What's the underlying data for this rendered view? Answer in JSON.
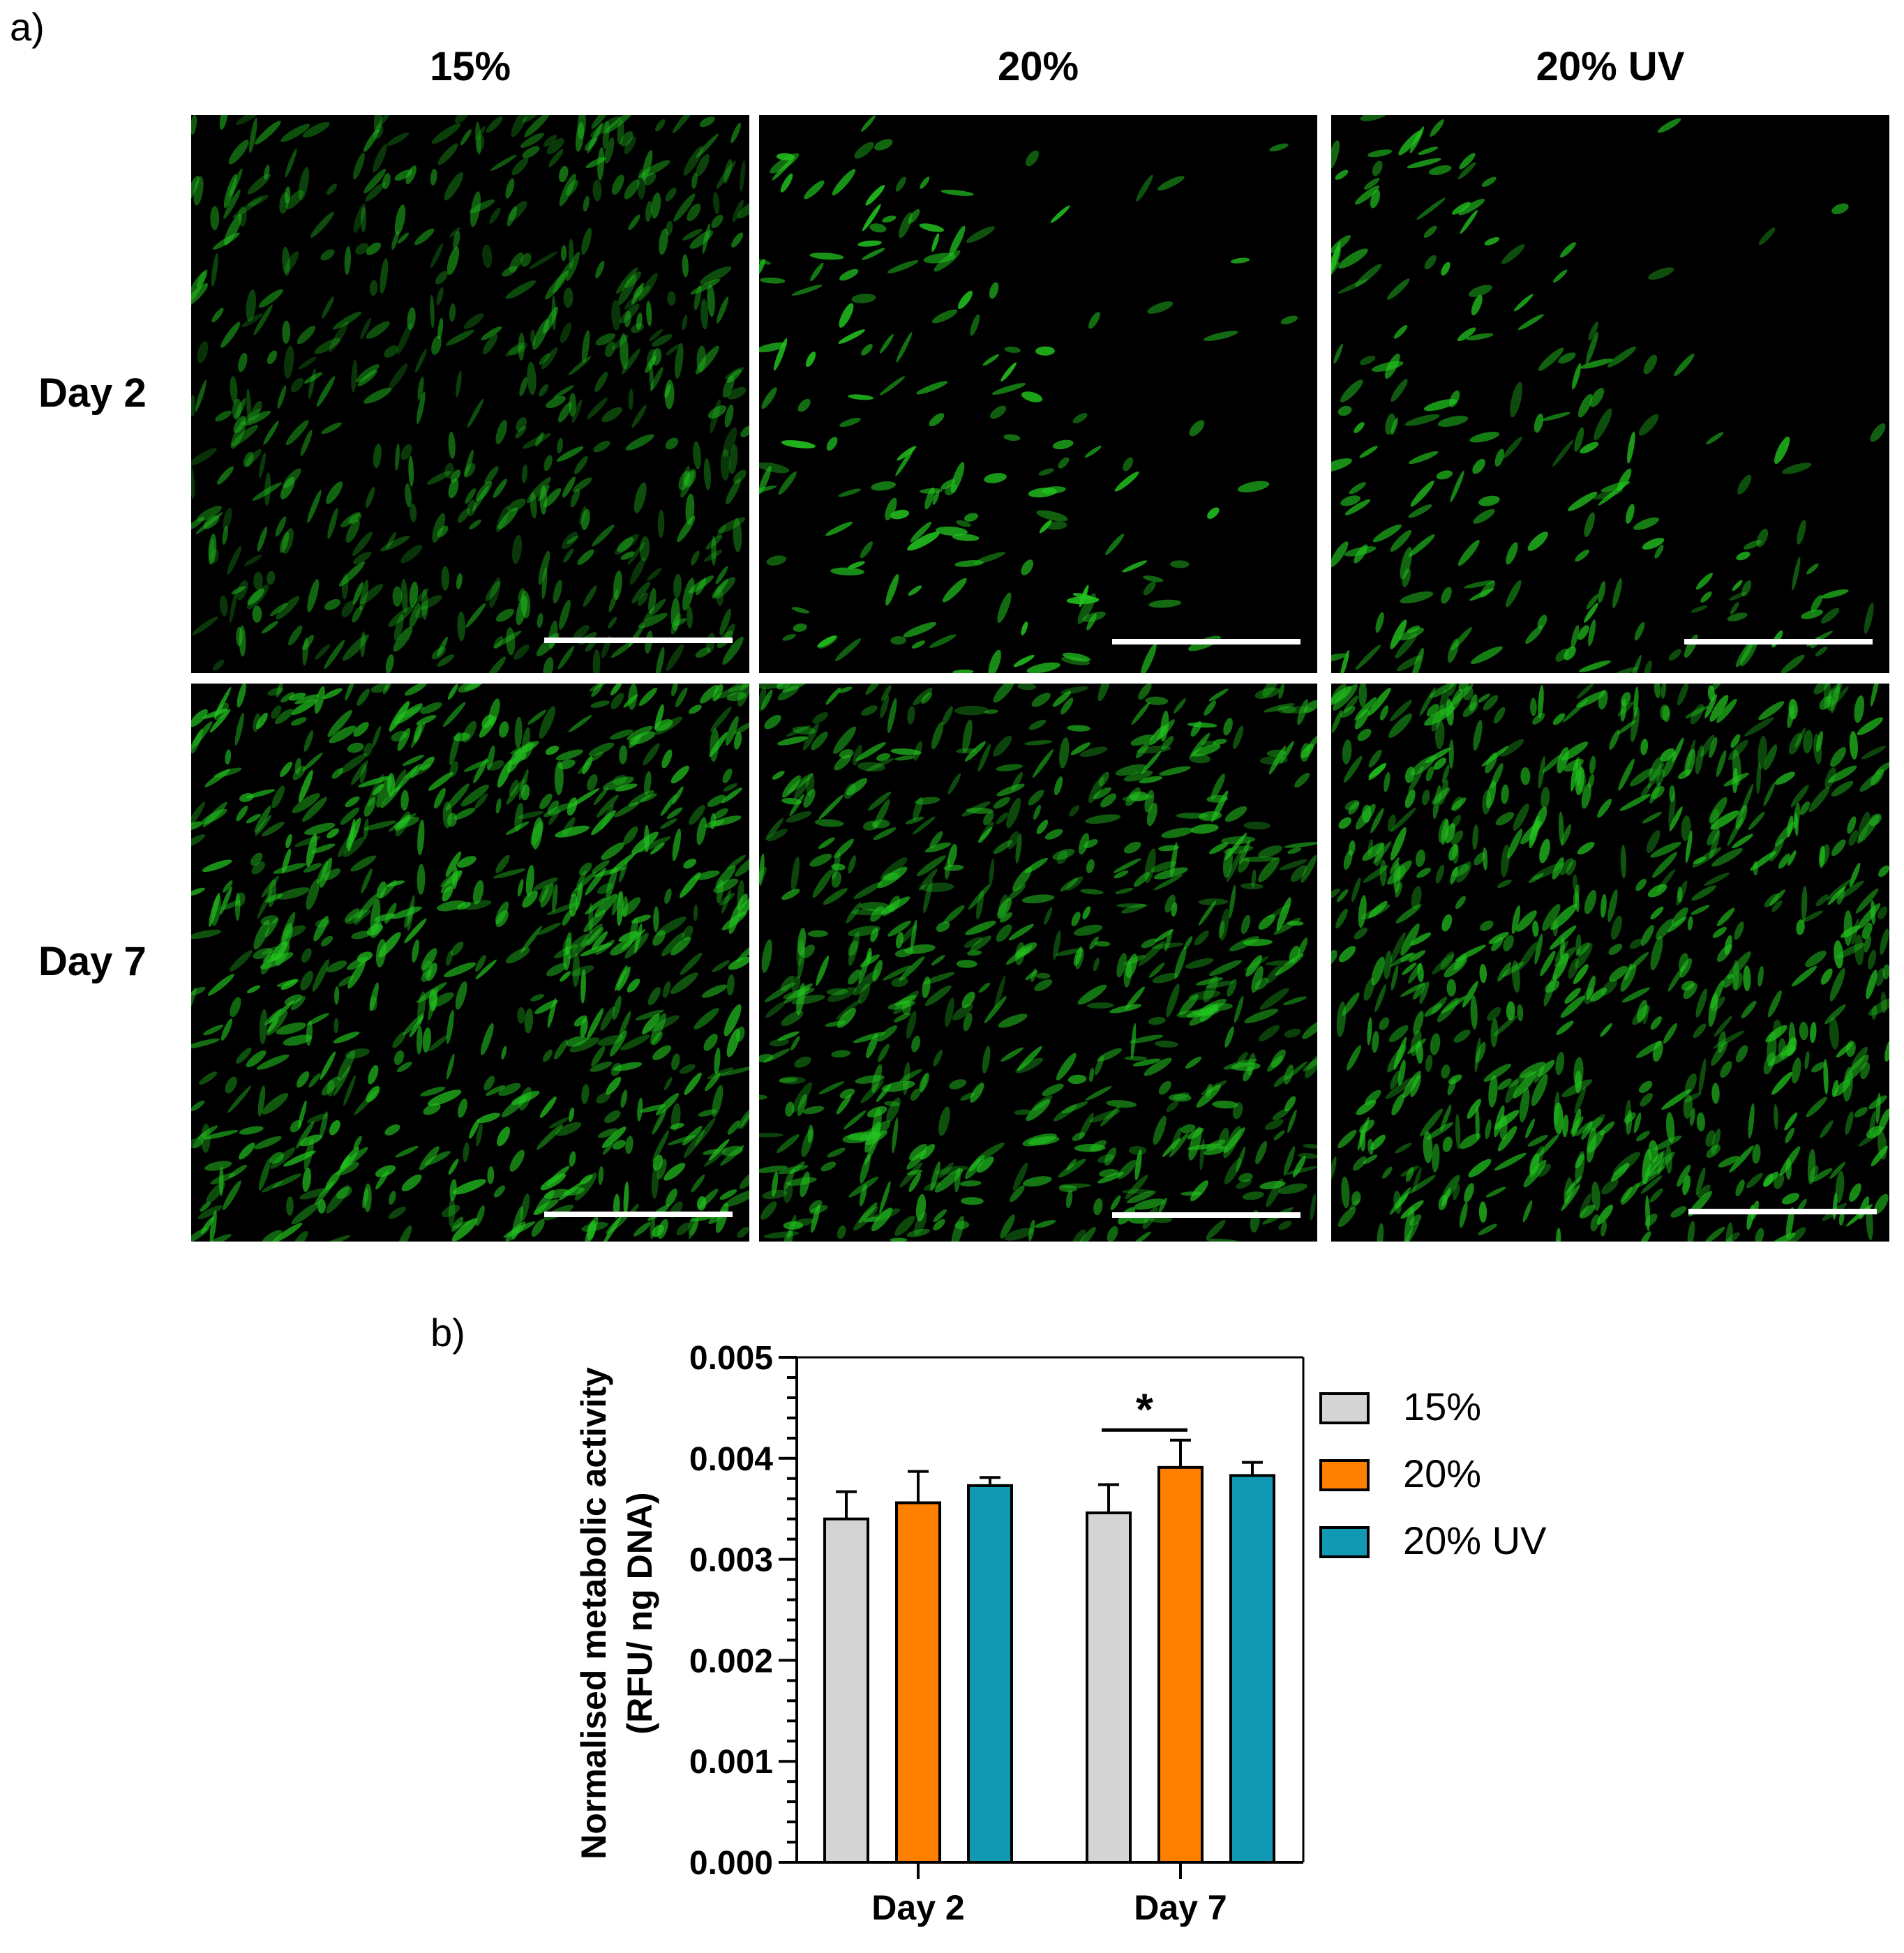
{
  "panel_a_label": "a)",
  "panel_b_label": "b)",
  "micrographs": {
    "columns": [
      "15%",
      "20%",
      "20% UV"
    ],
    "rows": [
      "Day 2",
      "Day 7"
    ],
    "stain_color": "#22c41f",
    "background_color": "#000000",
    "scale_bar_color": "#ffffff"
  },
  "chart_data": {
    "type": "bar",
    "categories": [
      "Day 2",
      "Day 7"
    ],
    "series": [
      {
        "name": "15%",
        "color": "#d4d4d4",
        "values": [
          0.0034,
          0.00346
        ],
        "errors": [
          0.00027,
          0.00028
        ]
      },
      {
        "name": "20%",
        "color": "#ff7f00",
        "values": [
          0.00356,
          0.00391
        ],
        "errors": [
          0.00031,
          0.00027
        ]
      },
      {
        "name": "20% UV",
        "color": "#1199b4",
        "values": [
          0.00373,
          0.00383
        ],
        "errors": [
          8e-05,
          0.00013
        ]
      }
    ],
    "ylabel_line1": "Normalised metabolic activity",
    "ylabel_line2": "(RFU/ ng DNA)",
    "xlabel": "",
    "ylim": [
      0,
      0.005
    ],
    "yticks": [
      "0.000",
      "0.001",
      "0.002",
      "0.003",
      "0.004",
      "0.005"
    ],
    "grid": false,
    "legend_position": "right",
    "significance": {
      "label": "*",
      "category": "Day 7",
      "between": [
        "15%",
        "20%"
      ]
    }
  }
}
